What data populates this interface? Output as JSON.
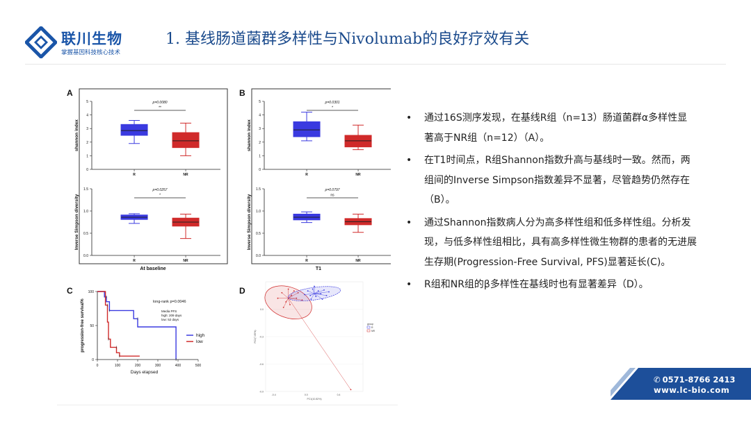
{
  "logo": {
    "name_cn": "联川生物",
    "slogan": "掌握基因科技核心技术"
  },
  "slide_title": "1. 基线肠道菌群多样性与Nivolumab的良好疗效有关",
  "figure": {
    "panel_a": {
      "letter": "A",
      "xlabel": "At baseline"
    },
    "panel_b": {
      "letter": "B",
      "xlabel": "T1"
    },
    "panel_c": {
      "letter": "C"
    },
    "panel_d": {
      "letter": "D"
    },
    "shannon_ylabel": "shannon index",
    "invsimpson_ylabel": "Inverse Simpson diversity",
    "group_r": "R",
    "group_nr": "NR",
    "a_top_p": "p=0.0080",
    "a_top_sig": "**",
    "a_bot_p": "p=0.0257",
    "a_bot_sig": "*",
    "b_top_p": "p=0.0301",
    "b_top_sig": "*",
    "b_bot_p": "p=0.0797",
    "b_bot_sig": "ns",
    "km_ylabel": "progression-free survival%",
    "km_xlabel": "Days elapsed",
    "km_logrank": "long-rank p=0.0046",
    "km_median_title": "Media PFS",
    "km_median_high": "high: 209 days",
    "km_median_low": "low: 52 days",
    "km_legend_high": "high",
    "km_legend_low": "low",
    "pcoa_xlabel": "PC1(10.82%)",
    "pcoa_ylabel": "PC2(7.85%)",
    "pcoa_legend_title": "group",
    "pcoa_legend_r": "R",
    "pcoa_legend_nr": "NR"
  },
  "chart_data": [
    {
      "type": "box",
      "panel": "A-top",
      "ylabel": "shannon index",
      "categories": [
        "R",
        "NR"
      ],
      "ylim": [
        0,
        5
      ],
      "yticks": [
        "0",
        "1",
        "2",
        "3",
        "4",
        "5"
      ],
      "boxes": [
        {
          "name": "R",
          "min": 1.9,
          "q1": 2.5,
          "median": 2.85,
          "q3": 3.3,
          "max": 3.6
        },
        {
          "name": "NR",
          "min": 1.0,
          "q1": 1.6,
          "median": 2.1,
          "q3": 2.7,
          "max": 3.4
        }
      ],
      "p_value": "p=0.0080",
      "significance": "**"
    },
    {
      "type": "box",
      "panel": "A-bottom",
      "ylabel": "Inverse Simpson diversity",
      "categories": [
        "R",
        "NR"
      ],
      "ylim": [
        0,
        1.5
      ],
      "yticks": [
        "0.0",
        "0.5",
        "1.0",
        "1.5"
      ],
      "boxes": [
        {
          "name": "R",
          "min": 0.72,
          "q1": 0.81,
          "median": 0.86,
          "q3": 0.91,
          "max": 0.94
        },
        {
          "name": "NR",
          "min": 0.38,
          "q1": 0.66,
          "median": 0.75,
          "q3": 0.84,
          "max": 0.93
        }
      ],
      "p_value": "p=0.0257",
      "significance": "*",
      "xlabel": "At baseline"
    },
    {
      "type": "box",
      "panel": "B-top",
      "ylabel": "shannon index",
      "categories": [
        "R",
        "NR"
      ],
      "ylim": [
        0,
        5
      ],
      "yticks": [
        "0",
        "1",
        "2",
        "3",
        "4",
        "5"
      ],
      "boxes": [
        {
          "name": "R",
          "min": 2.1,
          "q1": 2.4,
          "median": 2.9,
          "q3": 3.5,
          "max": 4.2
        },
        {
          "name": "NR",
          "min": 1.45,
          "q1": 1.65,
          "median": 2.1,
          "q3": 2.5,
          "max": 3.25
        }
      ],
      "p_value": "p=0.0301",
      "significance": "*"
    },
    {
      "type": "box",
      "panel": "B-bottom",
      "ylabel": "Inverse Simpson diversity",
      "categories": [
        "R",
        "NR"
      ],
      "ylim": [
        0,
        1.5
      ],
      "yticks": [
        "0.0",
        "0.5",
        "1.0",
        "1.5"
      ],
      "boxes": [
        {
          "name": "R",
          "min": 0.74,
          "q1": 0.8,
          "median": 0.86,
          "q3": 0.93,
          "max": 0.98
        },
        {
          "name": "NR",
          "min": 0.52,
          "q1": 0.69,
          "median": 0.76,
          "q3": 0.83,
          "max": 0.93
        }
      ],
      "p_value": "p=0.0797",
      "significance": "ns",
      "xlabel": "T1"
    },
    {
      "type": "line",
      "panel": "C",
      "title": "",
      "xlabel": "Days elapsed",
      "ylabel": "progression-free survival%",
      "xlim": [
        0,
        500
      ],
      "ylim": [
        0,
        100
      ],
      "xticks": [
        "0",
        "100",
        "200",
        "300",
        "400",
        "500"
      ],
      "yticks": [
        "0",
        "50",
        "100"
      ],
      "series": [
        {
          "name": "high",
          "points": [
            [
              0,
              100
            ],
            [
              35,
              100
            ],
            [
              35,
              92
            ],
            [
              45,
              92
            ],
            [
              45,
              85
            ],
            [
              60,
              85
            ],
            [
              60,
              72
            ],
            [
              180,
              72
            ],
            [
              180,
              60
            ],
            [
              200,
              60
            ],
            [
              200,
              48
            ],
            [
              390,
              48
            ],
            [
              390,
              0
            ]
          ]
        },
        {
          "name": "low",
          "points": [
            [
              0,
              100
            ],
            [
              40,
              100
            ],
            [
              40,
              80
            ],
            [
              50,
              80
            ],
            [
              50,
              55
            ],
            [
              55,
              55
            ],
            [
              55,
              30
            ],
            [
              65,
              30
            ],
            [
              65,
              18
            ],
            [
              95,
              18
            ],
            [
              95,
              10
            ],
            [
              110,
              10
            ],
            [
              110,
              5
            ],
            [
              210,
              5
            ]
          ]
        }
      ],
      "annotation": "long-rank p=0.0046"
    },
    {
      "type": "scatter",
      "panel": "D",
      "xlabel": "PC1(10.82%)",
      "ylabel": "PC2(7.85%)",
      "xlim": [
        -0.5,
        0.7
      ],
      "ylim": [
        -0.9,
        0.3
      ],
      "xticks": [
        "-0.4",
        "0.0",
        "0.4"
      ],
      "yticks": [
        "0.0",
        "-0.3",
        "-0.6",
        "-0.9"
      ],
      "series": [
        {
          "name": "NR",
          "centroid": [
            -0.22,
            0.12
          ],
          "points": [
            [
              -0.35,
              0.12
            ],
            [
              -0.3,
              0.18
            ],
            [
              -0.25,
              0.08
            ],
            [
              -0.18,
              0.15
            ],
            [
              -0.12,
              0.12
            ],
            [
              -0.2,
              0.05
            ],
            [
              -0.28,
              0.02
            ],
            [
              -0.15,
              0.2
            ],
            [
              -0.1,
              0.18
            ],
            [
              -0.05,
              0.1
            ],
            [
              -0.22,
              0.22
            ],
            [
              0.55,
              -0.88
            ]
          ]
        },
        {
          "name": "R",
          "centroid": [
            0.1,
            0.17
          ],
          "points": [
            [
              -0.02,
              0.16
            ],
            [
              0.02,
              0.2
            ],
            [
              0.05,
              0.15
            ],
            [
              0.08,
              0.22
            ],
            [
              0.12,
              0.14
            ],
            [
              0.15,
              0.2
            ],
            [
              0.18,
              0.17
            ],
            [
              0.22,
              0.21
            ],
            [
              0.25,
              0.15
            ],
            [
              0.06,
              0.11
            ],
            [
              0.1,
              0.25
            ],
            [
              0.2,
              0.11
            ],
            [
              0.28,
              0.19
            ]
          ]
        }
      ]
    }
  ],
  "bullets": [
    "通过16S测序发现，在基线R组（n=13）肠道菌群α多样性显著高于NR组（n=12）（A）。",
    "在T1时间点，R组Shannon指数升高与基线时一致。然而，两组间的Inverse Simpson指数差异不显著，尽管趋势仍然存在（B）。",
    "通过Shannon指数病人分为高多样性组和低多样性组。分析发现，与低多样性组相比，具有高多样性微生物群的患者的无进展生存期(Progression-Free Survival, PFS)显著延长(C)。",
    "R组和NR组的β多样性在基线时也有显著差异（D）。"
  ],
  "bullet_symbol": "•",
  "contact": {
    "phone_icon": "✆",
    "phone": "0571-8766 2413",
    "website": "www.lc-bio.com"
  },
  "colors": {
    "brand_blue": "#1a55a8",
    "title_blue": "#1a4a8c",
    "r_blue": "#3a3ae0",
    "nr_red": "#d02a2a",
    "contact_bg": "#1d4f9a"
  }
}
